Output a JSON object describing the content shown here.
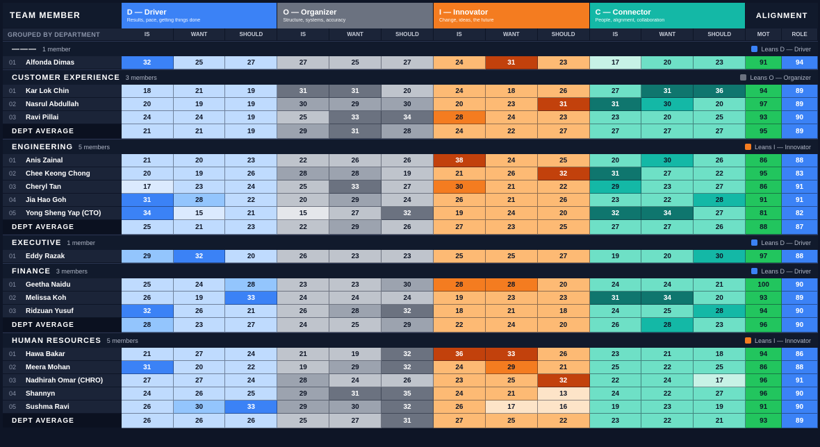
{
  "header": {
    "member_title": "TEAM MEMBER",
    "grouped_label": "GROUPED BY DEPARTMENT",
    "alignment_title": "ALIGNMENT",
    "groups": [
      {
        "key": "D",
        "title": "D — Driver",
        "subtitle": "Results, pace, getting things done",
        "color": "#3b82f6"
      },
      {
        "key": "O",
        "title": "O — Organizer",
        "subtitle": "Structure, systems, accuracy",
        "color": "#6b7280"
      },
      {
        "key": "I",
        "title": "I — Innovator",
        "subtitle": "Change, ideas, the future",
        "color": "#f47c20"
      },
      {
        "key": "C",
        "title": "C — Connector",
        "subtitle": "People, alignment, collaboration",
        "color": "#14b8a6"
      }
    ],
    "sub_labels": [
      "IS",
      "WANT",
      "SHOULD"
    ],
    "align_labels": [
      "MOT",
      "ROLE"
    ]
  },
  "legend_colors": {
    "D": "#3b82f6",
    "O": "#6b7280",
    "I": "#f47c20",
    "C": "#14b8a6"
  },
  "departments": [
    {
      "name": "———",
      "count": "1 member",
      "lean": "Leans D — Driver",
      "lean_key": "D",
      "avg": null,
      "members": [
        {
          "idx": "01",
          "name": "Alfonda Dimas",
          "values": [
            32,
            25,
            27,
            27,
            25,
            27,
            24,
            31,
            23,
            17,
            20,
            23
          ],
          "mot": "91",
          "role": "94"
        }
      ]
    },
    {
      "name": "CUSTOMER EXPERIENCE",
      "count": "3 members",
      "lean": "Leans O — Organizer",
      "lean_key": "O",
      "members": [
        {
          "idx": "01",
          "name": "Kar Lok Chin",
          "values": [
            18,
            21,
            19,
            31,
            31,
            20,
            24,
            18,
            26,
            27,
            31,
            36
          ],
          "mot": "94",
          "role": "89"
        },
        {
          "idx": "02",
          "name": "Nasrul Abdullah",
          "values": [
            20,
            19,
            19,
            30,
            29,
            30,
            20,
            23,
            31,
            31,
            30,
            20
          ],
          "mot": "97",
          "role": "89"
        },
        {
          "idx": "03",
          "name": "Ravi Pillai",
          "values": [
            24,
            24,
            19,
            25,
            33,
            34,
            28,
            24,
            23,
            23,
            20,
            25
          ],
          "mot": "93",
          "role": "90"
        }
      ],
      "avg": {
        "label": "DEPT AVERAGE",
        "values": [
          21,
          21,
          19,
          29,
          31,
          28,
          24,
          22,
          27,
          27,
          27,
          27
        ],
        "mot": "95",
        "role": "89"
      }
    },
    {
      "name": "ENGINEERING",
      "count": "5 members",
      "lean": "Leans I — Innovator",
      "lean_key": "I",
      "members": [
        {
          "idx": "01",
          "name": "Anis Zainal",
          "values": [
            21,
            20,
            23,
            22,
            26,
            26,
            38,
            24,
            25,
            20,
            30,
            26
          ],
          "mot": "86",
          "role": "88"
        },
        {
          "idx": "02",
          "name": "Chee Keong Chong",
          "values": [
            20,
            19,
            26,
            28,
            28,
            19,
            21,
            26,
            32,
            31,
            27,
            22
          ],
          "mot": "95",
          "role": "83"
        },
        {
          "idx": "03",
          "name": "Cheryl Tan",
          "values": [
            17,
            23,
            24,
            25,
            33,
            27,
            30,
            21,
            22,
            29,
            23,
            27
          ],
          "mot": "86",
          "role": "91"
        },
        {
          "idx": "04",
          "name": "Jia Hao Goh",
          "values": [
            31,
            28,
            22,
            20,
            29,
            24,
            26,
            21,
            26,
            23,
            22,
            28
          ],
          "mot": "91",
          "role": "91"
        },
        {
          "idx": "05",
          "name": "Yong Sheng Yap (CTO)",
          "values": [
            34,
            15,
            21,
            15,
            27,
            32,
            19,
            24,
            20,
            32,
            34,
            27
          ],
          "mot": "81",
          "role": "82"
        }
      ],
      "avg": {
        "label": "DEPT AVERAGE",
        "values": [
          25,
          21,
          23,
          22,
          29,
          26,
          27,
          23,
          25,
          27,
          27,
          26
        ],
        "mot": "88",
        "role": "87"
      }
    },
    {
      "name": "EXECUTIVE",
      "count": "1 member",
      "lean": "Leans D — Driver",
      "lean_key": "D",
      "avg": null,
      "members": [
        {
          "idx": "01",
          "name": "Eddy Razak",
          "values": [
            29,
            32,
            20,
            26,
            23,
            23,
            25,
            25,
            27,
            19,
            20,
            30
          ],
          "mot": "97",
          "role": "88"
        }
      ]
    },
    {
      "name": "FINANCE",
      "count": "3 members",
      "lean": "Leans D — Driver",
      "lean_key": "D",
      "members": [
        {
          "idx": "01",
          "name": "Geetha Naidu",
          "values": [
            25,
            24,
            28,
            23,
            23,
            30,
            28,
            28,
            20,
            24,
            24,
            21
          ],
          "mot": "100",
          "role": "90"
        },
        {
          "idx": "02",
          "name": "Melissa Koh",
          "values": [
            26,
            19,
            33,
            24,
            24,
            24,
            19,
            23,
            23,
            31,
            34,
            20
          ],
          "mot": "93",
          "role": "89"
        },
        {
          "idx": "03",
          "name": "Ridzuan Yusuf",
          "values": [
            32,
            26,
            21,
            26,
            28,
            32,
            18,
            21,
            18,
            24,
            25,
            28
          ],
          "mot": "94",
          "role": "90"
        }
      ],
      "avg": {
        "label": "DEPT AVERAGE",
        "values": [
          28,
          23,
          27,
          24,
          25,
          29,
          22,
          24,
          20,
          26,
          28,
          23
        ],
        "mot": "96",
        "role": "90"
      }
    },
    {
      "name": "HUMAN RESOURCES",
      "count": "5 members",
      "lean": "Leans I — Innovator",
      "lean_key": "I",
      "members": [
        {
          "idx": "01",
          "name": "Hawa Bakar",
          "values": [
            21,
            27,
            24,
            21,
            19,
            32,
            36,
            33,
            26,
            23,
            21,
            18
          ],
          "mot": "94",
          "role": "86"
        },
        {
          "idx": "02",
          "name": "Meera Mohan",
          "values": [
            31,
            20,
            22,
            19,
            29,
            32,
            24,
            29,
            21,
            25,
            22,
            25
          ],
          "mot": "86",
          "role": "88"
        },
        {
          "idx": "03",
          "name": "Nadhirah Omar (CHRO)",
          "values": [
            27,
            27,
            24,
            28,
            24,
            26,
            23,
            25,
            32,
            22,
            24,
            17
          ],
          "mot": "96",
          "role": "91"
        },
        {
          "idx": "04",
          "name": "Shannyn",
          "values": [
            24,
            26,
            25,
            29,
            31,
            35,
            24,
            21,
            13,
            24,
            22,
            27
          ],
          "mot": "96",
          "role": "90"
        },
        {
          "idx": "05",
          "name": "Sushma Ravi",
          "values": [
            26,
            30,
            33,
            29,
            30,
            32,
            26,
            17,
            16,
            19,
            23,
            19
          ],
          "mot": "91",
          "role": "90"
        }
      ],
      "avg": {
        "label": "DEPT AVERAGE",
        "values": [
          26,
          26,
          26,
          25,
          27,
          31,
          27,
          25,
          22,
          23,
          22,
          21
        ],
        "mot": "93",
        "role": "89"
      }
    }
  ]
}
